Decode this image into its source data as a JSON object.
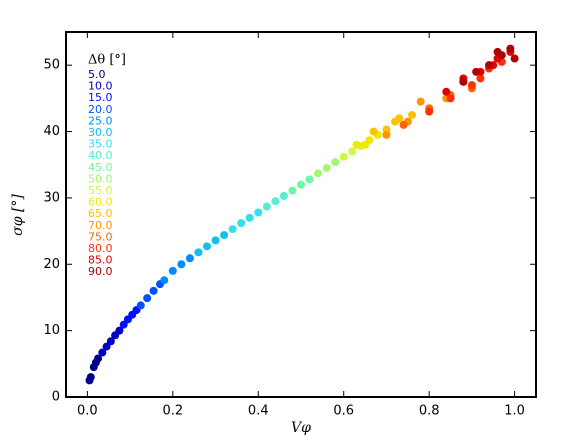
{
  "chart_data": {
    "type": "scatter",
    "xlabel": "Vφ",
    "ylabel": "σφ [°]",
    "legend_title": "Δθ [°]",
    "legend": "upper left",
    "xlim": [
      -0.05,
      1.05
    ],
    "ylim": [
      0,
      55
    ],
    "xticks": [
      {
        "value": 0,
        "label": "0.0"
      },
      {
        "value": 0.2,
        "label": "0.2"
      },
      {
        "value": 0.4,
        "label": "0.4"
      },
      {
        "value": 0.6,
        "label": "0.6"
      },
      {
        "value": 0.8,
        "label": "0.8"
      },
      {
        "value": 1,
        "label": "1.0"
      }
    ],
    "yticks": [
      0,
      10,
      20,
      30,
      40,
      50
    ],
    "series": [
      {
        "name": "5.0",
        "color": "#000088",
        "x": [
          0.005,
          0.008,
          0.015,
          0.02,
          0.025
        ],
        "values": [
          2.5,
          3,
          4.5,
          5.2,
          5.8
        ]
      },
      {
        "name": "10.0",
        "color": "#0000c4",
        "x": [
          0.035,
          0.045,
          0.055,
          0.065,
          0.075
        ],
        "values": [
          6.7,
          7.6,
          8.4,
          9.3,
          10
        ]
      },
      {
        "name": "15.0",
        "color": "#0010ff",
        "x": [
          0.085,
          0.095,
          0.105,
          0.115
        ],
        "values": [
          10.9,
          11.7,
          12.4,
          13.1
        ]
      },
      {
        "name": "20.0",
        "color": "#0050ff",
        "x": [
          0.125,
          0.14,
          0.155,
          0.17
        ],
        "values": [
          13.8,
          14.9,
          16,
          17
        ]
      },
      {
        "name": "25.0",
        "color": "#008cff",
        "x": [
          0.18,
          0.2,
          0.22,
          0.24
        ],
        "values": [
          17.6,
          19,
          20,
          20.9
        ]
      },
      {
        "name": "30.0",
        "color": "#10c0f0",
        "x": [
          0.26,
          0.28,
          0.3,
          0.32
        ],
        "values": [
          21.8,
          22.7,
          23.6,
          24.4
        ]
      },
      {
        "name": "35.0",
        "color": "#30e0f0",
        "x": [
          0.34,
          0.36,
          0.38,
          0.4
        ],
        "values": [
          25.3,
          26.2,
          27,
          27.8
        ]
      },
      {
        "name": "40.0",
        "color": "#50f0d0",
        "x": [
          0.42,
          0.44,
          0.46
        ],
        "values": [
          28.7,
          29.5,
          30.3
        ]
      },
      {
        "name": "45.0",
        "color": "#70f8a0",
        "x": [
          0.48,
          0.5,
          0.52
        ],
        "values": [
          31.1,
          32,
          32.8
        ]
      },
      {
        "name": "50.0",
        "color": "#a0f870",
        "x": [
          0.54,
          0.56,
          0.58
        ],
        "values": [
          33.7,
          34.5,
          35.4
        ]
      },
      {
        "name": "55.0",
        "color": "#d0f840",
        "x": [
          0.6,
          0.62,
          0.64
        ],
        "values": [
          36.2,
          37,
          37.8
        ]
      },
      {
        "name": "60.0",
        "color": "#f0e800",
        "x": [
          0.63,
          0.66,
          0.68,
          0.65
        ],
        "values": [
          38,
          38.7,
          39.5,
          38
        ]
      },
      {
        "name": "65.0",
        "color": "#ffc000",
        "x": [
          0.67,
          0.7,
          0.73,
          0.76,
          0.72
        ],
        "values": [
          40,
          40.3,
          42,
          42.5,
          41.5
        ]
      },
      {
        "name": "70.0",
        "color": "#ff9400",
        "x": [
          0.7,
          0.75,
          0.8,
          0.78,
          0.84
        ],
        "values": [
          39.5,
          41.5,
          43.5,
          44.5,
          45
        ]
      },
      {
        "name": "75.0",
        "color": "#ff6400",
        "x": [
          0.74,
          0.8,
          0.85,
          0.88,
          0.9
        ],
        "values": [
          41,
          43.5,
          45.5,
          47.5,
          46.5
        ]
      },
      {
        "name": "80.0",
        "color": "#ff3000",
        "x": [
          0.8,
          0.85,
          0.9,
          0.94,
          0.97,
          0.92
        ],
        "values": [
          43,
          45,
          47,
          49.5,
          50.5,
          48
        ]
      },
      {
        "name": "85.0",
        "color": "#e00000",
        "x": [
          0.84,
          0.88,
          0.92,
          0.96,
          0.99,
          0.95
        ],
        "values": [
          46,
          48,
          49,
          51,
          52,
          50
        ]
      },
      {
        "name": "90.0",
        "color": "#b00000",
        "x": [
          0.88,
          0.91,
          0.94,
          0.97,
          0.99,
          1,
          0.96
        ],
        "values": [
          47.5,
          49,
          50,
          51.5,
          52.5,
          51,
          52
        ]
      }
    ]
  }
}
